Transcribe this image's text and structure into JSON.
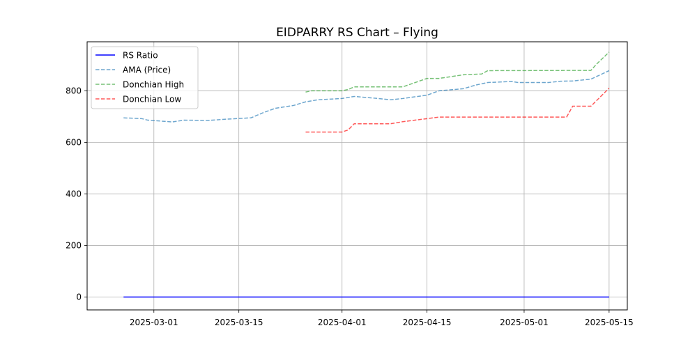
{
  "chart_data": {
    "type": "line",
    "title": "EIDPARRY RS Chart – Flying",
    "xlabel": "",
    "ylabel": "",
    "xlim": [
      "2025-02-18",
      "2025-05-18"
    ],
    "ylim": [
      -50,
      990
    ],
    "x_ticks": [
      "2025-03-01",
      "2025-03-15",
      "2025-04-01",
      "2025-04-15",
      "2025-05-01",
      "2025-05-15"
    ],
    "y_ticks": [
      0,
      200,
      400,
      600,
      800
    ],
    "grid": true,
    "legend_position": "top-left",
    "series": [
      {
        "name": "RS Ratio",
        "color": "#0000ff",
        "style": "solid",
        "points": [
          [
            "2025-02-24",
            0
          ],
          [
            "2025-05-15",
            0
          ]
        ]
      },
      {
        "name": "AMA (Price)",
        "color": "#1f77b4",
        "style": "dashed",
        "points": [
          [
            "2025-02-24",
            695
          ],
          [
            "2025-02-27",
            692
          ],
          [
            "2025-02-28",
            686
          ],
          [
            "2025-03-03",
            681
          ],
          [
            "2025-03-04",
            679
          ],
          [
            "2025-03-06",
            686
          ],
          [
            "2025-03-10",
            685
          ],
          [
            "2025-03-13",
            690
          ],
          [
            "2025-03-17",
            695
          ],
          [
            "2025-03-19",
            715
          ],
          [
            "2025-03-21",
            732
          ],
          [
            "2025-03-24",
            743
          ],
          [
            "2025-03-26",
            757
          ],
          [
            "2025-03-28",
            765
          ],
          [
            "2025-04-01",
            770
          ],
          [
            "2025-04-03",
            778
          ],
          [
            "2025-04-07",
            770
          ],
          [
            "2025-04-09",
            765
          ],
          [
            "2025-04-11",
            770
          ],
          [
            "2025-04-15",
            783
          ],
          [
            "2025-04-17",
            800
          ],
          [
            "2025-04-21",
            808
          ],
          [
            "2025-04-23",
            822
          ],
          [
            "2025-04-25",
            832
          ],
          [
            "2025-04-29",
            836
          ],
          [
            "2025-04-30",
            832
          ],
          [
            "2025-05-05",
            832
          ],
          [
            "2025-05-07",
            837
          ],
          [
            "2025-05-09",
            838
          ],
          [
            "2025-05-12",
            845
          ],
          [
            "2025-05-13",
            856
          ],
          [
            "2025-05-15",
            878
          ]
        ]
      },
      {
        "name": "Donchian High",
        "color": "#2ca02c",
        "style": "dashed",
        "points": [
          [
            "2025-03-26",
            795
          ],
          [
            "2025-03-27",
            800
          ],
          [
            "2025-04-01",
            800
          ],
          [
            "2025-04-02",
            805
          ],
          [
            "2025-04-03",
            815
          ],
          [
            "2025-04-09",
            815
          ],
          [
            "2025-04-11",
            815
          ],
          [
            "2025-04-15",
            848
          ],
          [
            "2025-04-17",
            848
          ],
          [
            "2025-04-21",
            862
          ],
          [
            "2025-04-23",
            864
          ],
          [
            "2025-04-24",
            865
          ],
          [
            "2025-04-25",
            878
          ],
          [
            "2025-05-12",
            879
          ],
          [
            "2025-05-13",
            905
          ],
          [
            "2025-05-15",
            950
          ]
        ]
      },
      {
        "name": "Donchian Low",
        "color": "#ff0000",
        "style": "dashed",
        "points": [
          [
            "2025-03-26",
            640
          ],
          [
            "2025-04-01",
            640
          ],
          [
            "2025-04-02",
            648
          ],
          [
            "2025-04-03",
            672
          ],
          [
            "2025-04-09",
            672
          ],
          [
            "2025-04-11",
            680
          ],
          [
            "2025-04-15",
            692
          ],
          [
            "2025-04-17",
            698
          ],
          [
            "2025-05-08",
            698
          ],
          [
            "2025-05-09",
            740
          ],
          [
            "2025-05-12",
            740
          ],
          [
            "2025-05-15",
            810
          ]
        ]
      }
    ]
  }
}
